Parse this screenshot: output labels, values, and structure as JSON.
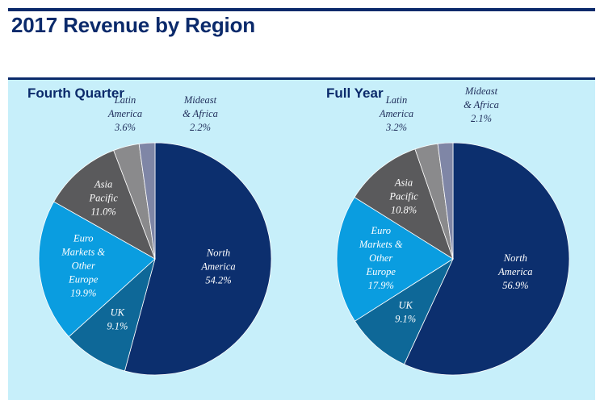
{
  "page": {
    "title": "2017 Revenue by Region"
  },
  "colors": {
    "north_america": "#0c2f6e",
    "uk": "#0e6898",
    "euro": "#0a9de0",
    "asia": "#5a5a5c",
    "latin": "#8a8a8c",
    "mideast": "#7f86a6",
    "panel_bg": "#c7effa",
    "title": "#0b2a6b"
  },
  "chart_data": [
    {
      "type": "pie",
      "title": "Fourth Quarter",
      "start_angle_deg": -90,
      "slices": [
        {
          "key": "north_america",
          "label": [
            "North",
            "America"
          ],
          "value": 54.2,
          "value_label": "54.2%",
          "label_inside": true,
          "label_color": "#ffffff"
        },
        {
          "key": "uk",
          "label": [
            "UK"
          ],
          "value": 9.1,
          "value_label": "9.1%",
          "label_inside": true,
          "label_color": "#ffffff"
        },
        {
          "key": "euro",
          "label": [
            "Euro",
            "Markets &",
            "Other",
            "Europe"
          ],
          "value": 19.9,
          "value_label": "19.9%",
          "label_inside": true,
          "label_color": "#ffffff"
        },
        {
          "key": "asia",
          "label": [
            "Asia",
            "Pacific"
          ],
          "value": 11.0,
          "value_label": "11.0%",
          "label_inside": true,
          "label_color": "#ffffff"
        },
        {
          "key": "latin",
          "label": [
            "Latin",
            "America"
          ],
          "value": 3.6,
          "value_label": "3.6%",
          "label_inside": false,
          "label_color": "#1f2d5a"
        },
        {
          "key": "mideast",
          "label": [
            "Mideast",
            "& Africa"
          ],
          "value": 2.2,
          "value_label": "2.2%",
          "label_inside": false,
          "label_color": "#1f2d5a"
        }
      ]
    },
    {
      "type": "pie",
      "title": "Full Year",
      "start_angle_deg": -90,
      "slices": [
        {
          "key": "north_america",
          "label": [
            "North",
            "America"
          ],
          "value": 56.9,
          "value_label": "56.9%",
          "label_inside": true,
          "label_color": "#ffffff"
        },
        {
          "key": "uk",
          "label": [
            "UK"
          ],
          "value": 9.1,
          "value_label": "9.1%",
          "label_inside": true,
          "label_color": "#ffffff"
        },
        {
          "key": "euro",
          "label": [
            "Euro",
            "Markets &",
            "Other",
            "Europe"
          ],
          "value": 17.9,
          "value_label": "17.9%",
          "label_inside": true,
          "label_color": "#ffffff"
        },
        {
          "key": "asia",
          "label": [
            "Asia",
            "Pacific"
          ],
          "value": 10.8,
          "value_label": "10.8%",
          "label_inside": true,
          "label_color": "#ffffff"
        },
        {
          "key": "latin",
          "label": [
            "Latin",
            "America"
          ],
          "value": 3.2,
          "value_label": "3.2%",
          "label_inside": false,
          "label_color": "#1f2d5a"
        },
        {
          "key": "mideast",
          "label": [
            "Mideast",
            "& Africa"
          ],
          "value": 2.1,
          "value_label": "2.1%",
          "label_inside": false,
          "label_color": "#1f2d5a"
        }
      ]
    }
  ]
}
